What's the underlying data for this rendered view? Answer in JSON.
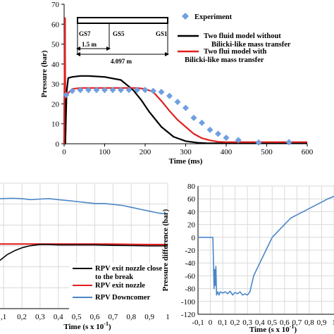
{
  "chart_data": [
    {
      "type": "line",
      "xlabel": "Time (ms)",
      "ylabel": "Pressure (bar)",
      "xlim": [
        0,
        600
      ],
      "ylim": [
        0,
        70
      ],
      "xticks": [
        "0",
        "100",
        "200",
        "300",
        "400",
        "500",
        "600"
      ],
      "yticks": [
        "0",
        "10",
        "20",
        "30",
        "40",
        "50",
        "60",
        "70"
      ],
      "grid": false,
      "legend_position": "top-right",
      "series": [
        {
          "name": "Experiment",
          "style": "diamond-markers",
          "color": "#6f9fe0",
          "x": [
            5,
            20,
            40,
            60,
            80,
            100,
            120,
            140,
            160,
            180,
            200,
            220,
            240,
            260,
            280,
            300,
            320,
            340,
            360,
            380,
            400,
            430,
            480,
            555
          ],
          "y": [
            24.5,
            26.5,
            27,
            27,
            27,
            27,
            27,
            27,
            27,
            27,
            27,
            26.5,
            26,
            24,
            21,
            18,
            13,
            10.5,
            7,
            5,
            3,
            1.8,
            0.6,
            0.8
          ]
        },
        {
          "name": "Two fluid model without Bilicki-like mass transfer",
          "style": "line",
          "color": "#000000",
          "x": [
            0,
            2,
            3,
            6,
            10,
            20,
            40,
            60,
            100,
            140,
            170,
            190,
            210,
            240,
            270,
            300,
            330,
            350,
            370,
            400,
            600
          ],
          "y": [
            0,
            63,
            0,
            26,
            33,
            33.5,
            34,
            34,
            33.5,
            32,
            27,
            22,
            16,
            8.5,
            3.5,
            1.3,
            0.5,
            0.3,
            0.2,
            0.3,
            0.3
          ]
        },
        {
          "name": "Two flui model with Bilicki-like mass transfer",
          "style": "line",
          "color": "#e02020",
          "x": [
            0,
            2,
            3,
            6,
            10,
            20,
            40,
            60,
            100,
            140,
            180,
            200,
            220,
            240,
            260,
            280,
            300,
            320,
            340,
            360,
            380,
            400,
            600
          ],
          "y": [
            0,
            63,
            23,
            24,
            25.5,
            27.5,
            28,
            28,
            28,
            28,
            28,
            27.5,
            26,
            21.5,
            16.5,
            12,
            8.5,
            5,
            2.8,
            1.7,
            1,
            0.8,
            0.8
          ]
        }
      ],
      "inset_schematic": {
        "gauges": [
          "GS7",
          "GS5",
          "GS1"
        ],
        "gauge_x_fraction": [
          0,
          0.35,
          1
        ],
        "dim_short": "1.5 m",
        "dim_long": "4.097 m"
      }
    },
    {
      "type": "line",
      "xlabel": "Time (s x 10",
      "xlabel_sup": "-1",
      "xlabel_end": ")",
      "xlim": [
        0.08,
        1.0
      ],
      "ylim": [
        -35,
        30
      ],
      "xticks": [
        ",1",
        "0,2",
        "0,3",
        "0,4",
        "0,5",
        "0,6",
        "0,7",
        "0,8",
        "0,9",
        "1"
      ],
      "xtick_values": [
        0.1,
        0.2,
        0.3,
        0.4,
        0.5,
        0.6,
        0.7,
        0.8,
        0.9,
        1.0
      ],
      "grid": true,
      "legend_position": "bottom-right",
      "series": [
        {
          "name": "RPV exit nozzle close to the break",
          "color": "#000000",
          "x": [
            0.08,
            0.12,
            0.16,
            0.2,
            0.24,
            0.28,
            0.3,
            0.35,
            0.4,
            0.5,
            0.6,
            0.7,
            0.8,
            0.9,
            1.0
          ],
          "y": [
            -10,
            -7,
            -5,
            -3.5,
            -2.5,
            -2,
            -1.8,
            -1.8,
            -2,
            -2,
            -2,
            -2.2,
            -2.3,
            -2.5,
            -2.5
          ]
        },
        {
          "name": "RPV exit nozzle",
          "color": "#e02020",
          "x": [
            0.08,
            0.2,
            0.3,
            0.4,
            0.5,
            0.6,
            0.7,
            0.8,
            0.9,
            1.0
          ],
          "y": [
            -1.5,
            -1.5,
            -1.5,
            -1.5,
            -1.5,
            -1.5,
            -1.6,
            -1.7,
            -1.8,
            -1.8
          ]
        },
        {
          "name": "RPV Downcomer",
          "color": "#4a86c8",
          "x": [
            0.08,
            0.15,
            0.2,
            0.25,
            0.3,
            0.35,
            0.4,
            0.45,
            0.5,
            0.55,
            0.6,
            0.65,
            0.7,
            0.75,
            0.8,
            0.85,
            0.9,
            0.95,
            1.0
          ],
          "y": [
            22,
            22.2,
            22,
            21.5,
            21.8,
            22,
            21.5,
            21,
            20.5,
            20,
            19.5,
            19.5,
            19,
            18.5,
            17.5,
            16.5,
            15.5,
            14.5,
            14
          ]
        }
      ]
    },
    {
      "type": "line",
      "xlabel": "Time (s x 10",
      "xlabel_sup": "-1",
      "xlabel_end": ")",
      "ylabel": "Pressure difference (bar)",
      "xlim": [
        -0.1,
        1.0
      ],
      "ylim": [
        -120,
        80
      ],
      "xticks": [
        "-0,1",
        "0",
        "0,1",
        "0,2",
        "0,3",
        "0,4",
        "0,5",
        "0,6",
        "0,7",
        "0,8",
        "0,9",
        "1"
      ],
      "xtick_values": [
        -0.1,
        0,
        0.1,
        0.2,
        0.3,
        0.4,
        0.5,
        0.6,
        0.7,
        0.8,
        0.9,
        1.0
      ],
      "yticks": [
        "-120",
        "-100",
        "-80",
        "-60",
        "-40",
        "-20",
        "0",
        "20",
        "40",
        "60",
        "80"
      ],
      "grid": true,
      "series": [
        {
          "name": "",
          "color": "#4a86c8",
          "x": [
            -0.1,
            0.02,
            0.03,
            0.035,
            0.04,
            0.045,
            0.05,
            0.06,
            0.07,
            0.08,
            0.1,
            0.12,
            0.14,
            0.16,
            0.18,
            0.2,
            0.22,
            0.24,
            0.26,
            0.28,
            0.3,
            0.32,
            0.35,
            0.4,
            0.45,
            0.5,
            0.55,
            0.6,
            0.65,
            0.7,
            0.75,
            0.8,
            0.85,
            0.9,
            0.95,
            1.0
          ],
          "y": [
            0,
            0,
            -80,
            -50,
            -75,
            -45,
            -90,
            -85,
            -90,
            -85,
            -87,
            -85,
            -88,
            -84,
            -90,
            -86,
            -88,
            -85,
            -90,
            -88,
            -90,
            -85,
            -60,
            -40,
            -20,
            0,
            10,
            20,
            30,
            35,
            40,
            45,
            50,
            55,
            60,
            64
          ]
        }
      ]
    }
  ]
}
